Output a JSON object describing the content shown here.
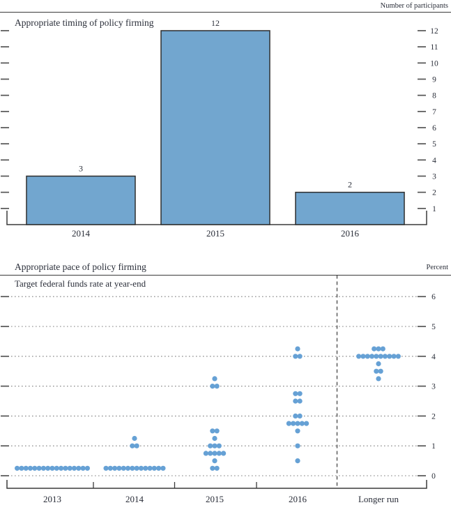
{
  "figure": {
    "background": "#ffffff",
    "text_color": "#2a2e39",
    "axis_color": "#3a3a3a",
    "grid_color": "#7f7f7f"
  },
  "chart_data": [
    {
      "type": "bar",
      "title": "Appropriate timing of policy firming",
      "corner_label": "Number of participants",
      "categories": [
        "2014",
        "2015",
        "2016"
      ],
      "values": [
        3,
        12,
        2
      ],
      "yticks": [
        1,
        2,
        3,
        4,
        5,
        6,
        7,
        8,
        9,
        10,
        11,
        12
      ],
      "ylim": [
        0,
        13
      ],
      "legend": "none",
      "grid": "off",
      "axis_labels_side": "right",
      "bar_color": "#72a6cf",
      "bar_border": "#2e2e2e"
    },
    {
      "type": "scatter",
      "title": "Appropriate pace of policy firming",
      "corner_label": "Percent",
      "annotation": "Target federal funds rate at year-end",
      "categories": [
        "2013",
        "2014",
        "2015",
        "2016",
        "Longer run"
      ],
      "yticks": [
        0,
        1,
        2,
        3,
        4,
        5,
        6
      ],
      "ylim": [
        -0.4,
        6.7
      ],
      "legend": "none",
      "grid": "dotted-horizontal",
      "axis_labels_side": "right",
      "separator_after_category": "2016",
      "dot_color": "#66a1d5",
      "points": [
        {
          "category": "2013",
          "rate": 0.25,
          "count": 17
        },
        {
          "category": "2014",
          "rate": 0.25,
          "count": 14
        },
        {
          "category": "2014",
          "rate": 1.0,
          "count": 2
        },
        {
          "category": "2014",
          "rate": 1.25,
          "count": 1
        },
        {
          "category": "2015",
          "rate": 0.25,
          "count": 2
        },
        {
          "category": "2015",
          "rate": 0.5,
          "count": 1
        },
        {
          "category": "2015",
          "rate": 0.75,
          "count": 5
        },
        {
          "category": "2015",
          "rate": 1.0,
          "count": 3
        },
        {
          "category": "2015",
          "rate": 1.25,
          "count": 1
        },
        {
          "category": "2015",
          "rate": 1.5,
          "count": 2
        },
        {
          "category": "2015",
          "rate": 3.0,
          "count": 2
        },
        {
          "category": "2015",
          "rate": 3.25,
          "count": 1
        },
        {
          "category": "2016",
          "rate": 0.5,
          "count": 1
        },
        {
          "category": "2016",
          "rate": 1.0,
          "count": 1
        },
        {
          "category": "2016",
          "rate": 1.5,
          "count": 1
        },
        {
          "category": "2016",
          "rate": 1.75,
          "count": 5
        },
        {
          "category": "2016",
          "rate": 2.0,
          "count": 2
        },
        {
          "category": "2016",
          "rate": 2.5,
          "count": 2
        },
        {
          "category": "2016",
          "rate": 2.75,
          "count": 2
        },
        {
          "category": "2016",
          "rate": 4.0,
          "count": 2
        },
        {
          "category": "2016",
          "rate": 4.25,
          "count": 1
        },
        {
          "category": "Longer run",
          "rate": 3.25,
          "count": 1
        },
        {
          "category": "Longer run",
          "rate": 3.5,
          "count": 2
        },
        {
          "category": "Longer run",
          "rate": 3.75,
          "count": 1
        },
        {
          "category": "Longer run",
          "rate": 4.0,
          "count": 10
        },
        {
          "category": "Longer run",
          "rate": 4.25,
          "count": 3
        }
      ]
    }
  ]
}
